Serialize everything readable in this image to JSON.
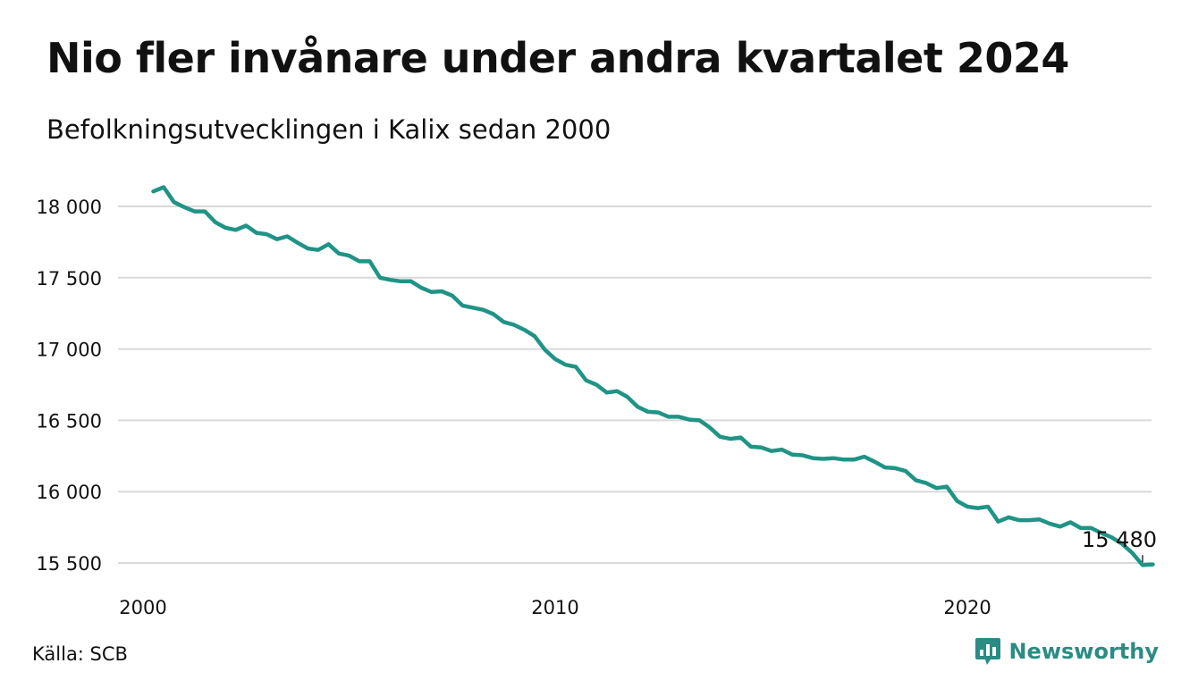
{
  "title": "Nio fler invånare under andra kvartalet 2024",
  "subtitle": "Befolkningsutvecklingen i Kalix sedan 2000",
  "source": "Källa: SCB",
  "brand": {
    "name": "Newsworthy",
    "icon": "newsworthy-chart-icon"
  },
  "colors": {
    "line": "#1f9486",
    "grid": "#d9d9d9",
    "brand": "#2a8c85"
  },
  "chart_data": {
    "type": "line",
    "x_ticks": [
      {
        "value": 2000,
        "label": "2000"
      },
      {
        "value": 2010,
        "label": "2010"
      },
      {
        "value": 2020,
        "label": "2020"
      }
    ],
    "y_ticks": [
      {
        "value": 15500,
        "label": "15 500"
      },
      {
        "value": 16000,
        "label": "16 000"
      },
      {
        "value": 16500,
        "label": "16 500"
      },
      {
        "value": 17000,
        "label": "17 000"
      },
      {
        "value": 17500,
        "label": "17 500"
      },
      {
        "value": 18000,
        "label": "18 000"
      }
    ],
    "xlim": [
      2000,
      2024.25
    ],
    "ylim": [
      15500,
      18000
    ],
    "grid": true,
    "series": [
      {
        "x_start": 2000.25,
        "x_step": 0.25,
        "values": [
          18105,
          18135,
          18030,
          17995,
          17965,
          17965,
          17890,
          17850,
          17835,
          17865,
          17815,
          17805,
          17770,
          17790,
          17745,
          17705,
          17695,
          17735,
          17670,
          17655,
          17615,
          17615,
          17500,
          17485,
          17475,
          17475,
          17430,
          17400,
          17405,
          17375,
          17305,
          17290,
          17275,
          17245,
          17190,
          17170,
          17135,
          17090,
          16995,
          16930,
          16890,
          16875,
          16780,
          16750,
          16695,
          16705,
          16665,
          16595,
          16560,
          16555,
          16525,
          16525,
          16505,
          16500,
          16450,
          16385,
          16370,
          16380,
          16315,
          16310,
          16285,
          16295,
          16260,
          16255,
          16235,
          16230,
          16235,
          16225,
          16225,
          16245,
          16210,
          16170,
          16165,
          16145,
          16080,
          16060,
          16025,
          16035,
          15935,
          15895,
          15885,
          15895,
          15790,
          15820,
          15800,
          15800,
          15805,
          15775,
          15755,
          15785,
          15745,
          15745,
          15710,
          15680,
          15635,
          15570,
          15485,
          15490
        ]
      }
    ],
    "annotations": [
      {
        "text": "15 480",
        "x": 2024.25,
        "y": 15480
      }
    ]
  }
}
